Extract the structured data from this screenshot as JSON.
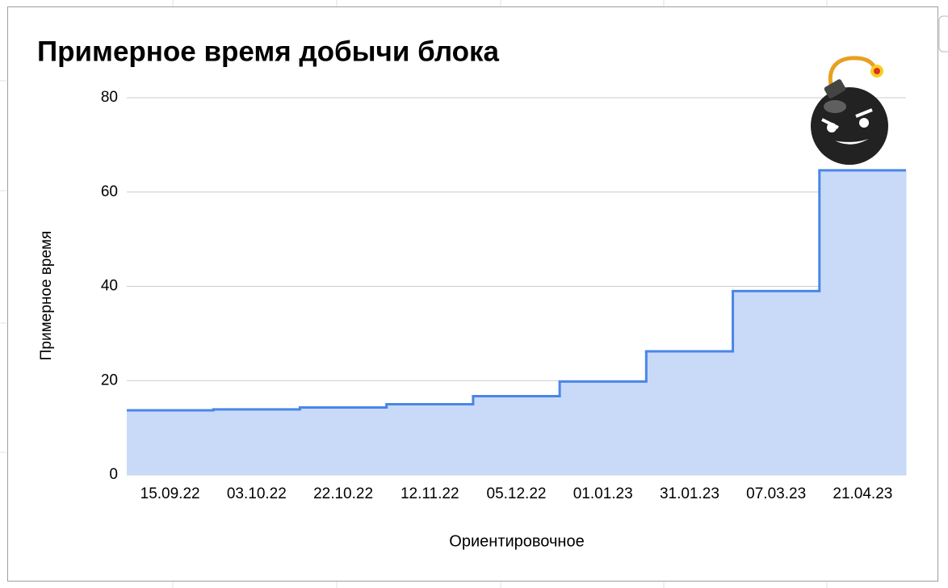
{
  "chart_data": {
    "type": "stepped-area",
    "title": "Примерное время добычи блока",
    "y_label": "Примерное время",
    "x_label": "Ориентировочное",
    "categories": [
      "15.09.22",
      "03.10.22",
      "22.10.22",
      "12.11.22",
      "05.12.22",
      "01.01.23",
      "31.01.23",
      "07.03.23",
      "21.04.23"
    ],
    "values": [
      13.7,
      13.9,
      14.3,
      15.0,
      16.7,
      19.8,
      26.2,
      39.0,
      64.6
    ],
    "color": "#4a86e8",
    "fill_color": "#c9daf8",
    "ylim": [
      0,
      80
    ],
    "yticks": [
      0,
      20,
      40,
      60,
      80
    ],
    "grid": true
  }
}
